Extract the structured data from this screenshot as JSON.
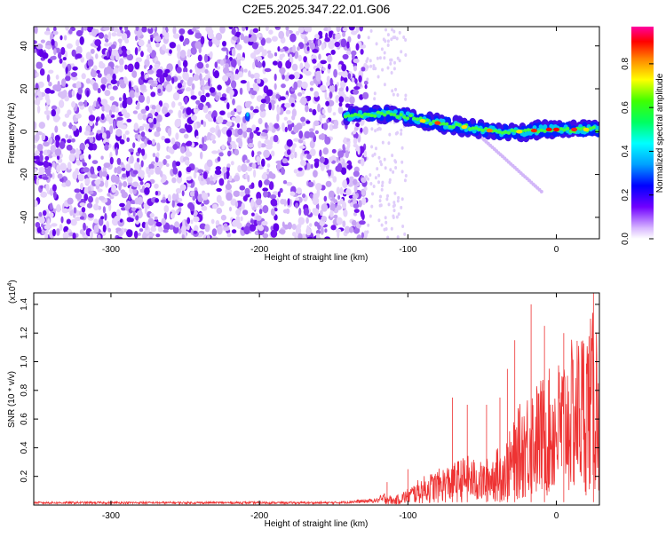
{
  "figure_title": "C2E5.2025.347.22.01.G06",
  "chart_data": [
    {
      "type": "heatmap",
      "title": "C2E5.2025.347.22.01.G06",
      "xlabel": "Height of straight line (km)",
      "ylabel": "Frequency (Hz)",
      "xlim": [
        -352,
        29
      ],
      "ylim": [
        -50,
        49
      ],
      "x_ticks": [
        -300,
        -200,
        -100,
        0
      ],
      "y_ticks": [
        -40,
        -20,
        0,
        20,
        40
      ],
      "noise_region_x": [
        -352,
        -128
      ],
      "signal_track": {
        "x": [
          -142,
          -125,
          -110,
          -100,
          -90,
          -80,
          -70,
          -60,
          -50,
          -40,
          -30,
          -20,
          -10,
          0,
          10,
          20,
          29
        ],
        "y": [
          7,
          8,
          8,
          7,
          5,
          4,
          3,
          2,
          1,
          0,
          0,
          0,
          1,
          1,
          1,
          1,
          1
        ]
      },
      "colorbar": {
        "label": "Normalized spectral amplitude",
        "range": [
          0,
          0.97
        ],
        "ticks": [
          0.0,
          0.2,
          0.4,
          0.6,
          0.8
        ],
        "tick_labels": [
          "0.0",
          "0.2",
          "0.4",
          "0.6",
          "0.8"
        ]
      }
    },
    {
      "type": "line",
      "xlabel": "Height of straight line (km)",
      "ylabel": "SNR (10 * v/v)",
      "y_multiplier": "(x10",
      "y_multiplier_exp": "4",
      "y_multiplier_close": ")",
      "xlim": [
        -352,
        29
      ],
      "ylim": [
        0,
        1.48
      ],
      "x_ticks": [
        -300,
        -200,
        -100,
        0
      ],
      "y_ticks": [
        0.2,
        0.4,
        0.6,
        0.8,
        1.0,
        1.2,
        1.4
      ],
      "y_tick_labels": [
        "0.2",
        "0.4",
        "0.6",
        "0.8",
        "1.0",
        "1.2",
        "1.4"
      ],
      "series": [
        {
          "name": "SNR",
          "color": "#ee3333",
          "x": [
            -352,
            -300,
            -250,
            -200,
            -150,
            -120,
            -115,
            -110,
            -100,
            -90,
            -80,
            -70,
            -60,
            -50,
            -45,
            -40,
            -35,
            -30,
            -25,
            -20,
            -17,
            -15,
            -10,
            -5,
            0,
            10,
            20,
            29
          ],
          "y": [
            0.02,
            0.02,
            0.02,
            0.02,
            0.02,
            0.04,
            0.1,
            0.05,
            0.12,
            0.2,
            0.25,
            0.3,
            0.35,
            0.3,
            0.35,
            0.4,
            0.45,
            0.55,
            0.7,
            0.8,
            0.9,
            0.85,
            0.9,
            0.95,
            1.0,
            1.15,
            1.3,
            1.4
          ],
          "peaks": [
            [
              -114,
              0.16
            ],
            [
              -100,
              0.25
            ],
            [
              -70,
              0.75
            ],
            [
              -60,
              0.7
            ],
            [
              -47,
              0.7
            ],
            [
              -38,
              0.75
            ],
            [
              -33,
              0.95
            ],
            [
              -28,
              1.15
            ],
            [
              -17,
              1.4
            ],
            [
              -8,
              1.25
            ],
            [
              5,
              1.2
            ],
            [
              25,
              1.48
            ]
          ]
        }
      ]
    }
  ],
  "colors": {
    "noise_purple": "#6a00ee",
    "noise_light": "#d8b8f8",
    "snr_line": "#ee3333",
    "axis": "#000000"
  }
}
